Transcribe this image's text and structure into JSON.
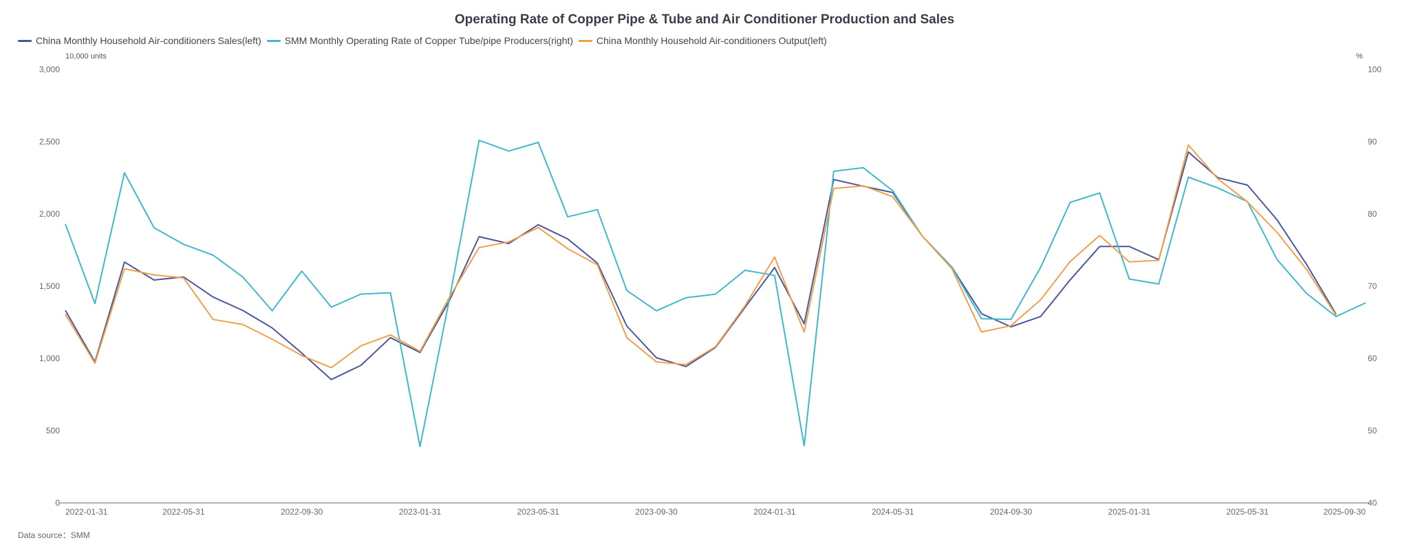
{
  "chart_data": {
    "type": "line",
    "title": "Operating Rate of Copper Pipe & Tube and Air Conditioner Production and Sales",
    "left_axis": {
      "unit_label": "10,000 units",
      "range": [
        0,
        3000
      ],
      "ticks": [
        "0",
        "500",
        "1,000",
        "1,500",
        "2,000",
        "2,500",
        "3,000"
      ],
      "tick_values": [
        0,
        500,
        1000,
        1500,
        2000,
        2500,
        3000
      ]
    },
    "right_axis": {
      "unit_label": "%",
      "range": [
        40,
        100
      ],
      "ticks": [
        "40",
        "50",
        "60",
        "70",
        "80",
        "90",
        "100"
      ],
      "tick_values": [
        40,
        50,
        60,
        70,
        80,
        90,
        100
      ]
    },
    "x_tick_labels": [
      "2022-01-31",
      "2022-05-31",
      "2022-09-30",
      "2023-01-31",
      "2023-05-31",
      "2023-09-30",
      "2024-01-31",
      "2024-05-31",
      "2024-09-30",
      "2025-01-31",
      "2025-05-31",
      "2025-09-30"
    ],
    "x_tick_indices": [
      0,
      4,
      8,
      12,
      16,
      20,
      24,
      28,
      32,
      36,
      40,
      44
    ],
    "x": [
      "2022-01-31",
      "2022-02-28",
      "2022-03-31",
      "2022-04-30",
      "2022-05-31",
      "2022-06-30",
      "2022-07-31",
      "2022-08-31",
      "2022-09-30",
      "2022-10-31",
      "2022-11-30",
      "2022-12-31",
      "2023-01-31",
      "2023-02-28",
      "2023-03-31",
      "2023-04-30",
      "2023-05-31",
      "2023-06-30",
      "2023-07-31",
      "2023-08-31",
      "2023-09-30",
      "2023-10-31",
      "2023-11-30",
      "2023-12-31",
      "2024-01-31",
      "2024-02-29",
      "2024-03-31",
      "2024-04-30",
      "2024-05-31",
      "2024-06-30",
      "2024-07-31",
      "2024-08-31",
      "2024-09-30",
      "2024-10-31",
      "2024-11-30",
      "2024-12-31",
      "2025-01-31",
      "2025-02-28",
      "2025-03-31",
      "2025-04-30",
      "2025-05-31",
      "2025-06-30",
      "2025-07-31",
      "2025-08-31",
      "2025-09-30"
    ],
    "series": [
      {
        "name": "China Monthly Household Air-conditioners Sales(left)",
        "axis": "left",
        "color": "#4a5899",
        "values": [
          1333,
          976,
          1667,
          1543,
          1564,
          1425,
          1333,
          1211,
          1037,
          854,
          952,
          1144,
          1041,
          1402,
          1843,
          1795,
          1925,
          1827,
          1660,
          1224,
          1005,
          944,
          1076,
          1354,
          1629,
          1240,
          2238,
          2192,
          2148,
          1846,
          1632,
          1310,
          1219,
          1290,
          1544,
          1775,
          1775,
          1684,
          2429,
          2251,
          2200,
          1960,
          1651,
          1306,
          null
        ]
      },
      {
        "name": "SMM Monthly Operating Rate of Copper Tube/pipe Producers(right)",
        "axis": "right",
        "color": "#3fb8cc",
        "values": [
          78.6,
          67.6,
          85.7,
          78.1,
          75.8,
          74.3,
          71.3,
          66.6,
          72.1,
          67.1,
          68.9,
          69.1,
          47.8,
          68.3,
          90.2,
          88.7,
          89.9,
          79.6,
          80.6,
          69.4,
          66.6,
          68.4,
          68.9,
          72.2,
          71.5,
          47.9,
          85.9,
          86.4,
          83.2,
          76.9,
          72.6,
          65.5,
          65.4,
          72.6,
          81.6,
          82.9,
          71.0,
          70.3,
          85.1,
          83.6,
          81.7,
          73.7,
          69.0,
          65.8,
          67.7
        ]
      },
      {
        "name": "China Monthly Household Air-conditioners Output(left)",
        "axis": "left",
        "color": "#f0a04b",
        "values": [
          1306,
          966,
          1621,
          1578,
          1557,
          1270,
          1235,
          1133,
          1020,
          936,
          1087,
          1163,
          1049,
          1425,
          1767,
          1806,
          1906,
          1759,
          1648,
          1144,
          976,
          957,
          1081,
          1365,
          1702,
          1183,
          2176,
          2195,
          2119,
          1846,
          1621,
          1183,
          1227,
          1405,
          1671,
          1851,
          1668,
          1679,
          2478,
          2243,
          2084,
          1873,
          1616,
          1298,
          null
        ]
      }
    ],
    "legend_position": "top-left",
    "grid": false,
    "source": "Data source：SMM"
  }
}
